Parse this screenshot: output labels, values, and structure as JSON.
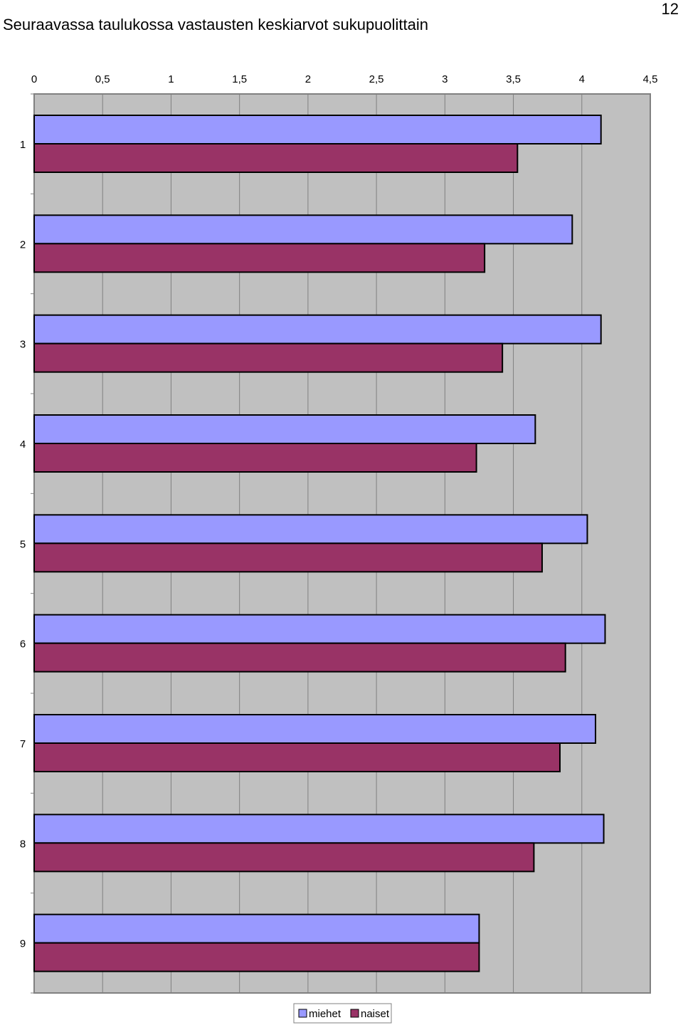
{
  "page": {
    "title": "Seuraavassa taulukossa vastausten keskiarvot sukupuolittain",
    "page_number": "12"
  },
  "chart_data": {
    "type": "bar",
    "orientation": "horizontal",
    "title": "",
    "xlabel": "",
    "ylabel": "",
    "categories": [
      "1",
      "2",
      "3",
      "4",
      "5",
      "6",
      "7",
      "8",
      "9"
    ],
    "series": [
      {
        "name": "miehet",
        "color": "#9999ff",
        "values": [
          4.14,
          3.93,
          4.14,
          3.66,
          4.04,
          4.17,
          4.1,
          4.16,
          3.25
        ]
      },
      {
        "name": "naiset",
        "color": "#993366",
        "values": [
          3.53,
          3.29,
          3.42,
          3.23,
          3.71,
          3.88,
          3.84,
          3.65,
          3.25
        ]
      }
    ],
    "x_ticks": [
      "0",
      "0,5",
      "1",
      "1,5",
      "2",
      "2,5",
      "3",
      "3,5",
      "4",
      "4,5"
    ],
    "xlim": [
      0,
      4.5
    ],
    "x_axis_position": "top",
    "grid": true,
    "plot_background": "#c0c0c0",
    "legend_position": "bottom-center"
  }
}
